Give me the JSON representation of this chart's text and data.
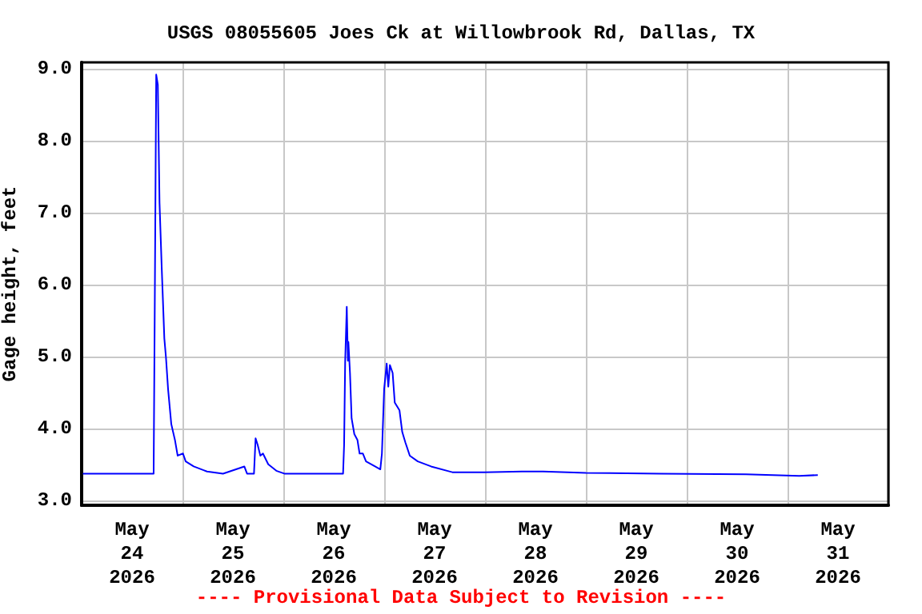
{
  "chart_data": {
    "type": "line",
    "title": "USGS 08055605 Joes Ck at Willowbrook Rd, Dallas, TX",
    "ylabel": "Gage height, feet",
    "annotations": [
      "---- Provisional Data Subject to Revision ----"
    ],
    "x": [
      "2026-05-24T00:00",
      "2026-05-24T17:08",
      "2026-05-24T17:23",
      "2026-05-24T17:45",
      "2026-05-24T18:08",
      "2026-05-24T18:32",
      "2026-05-24T19:03",
      "2026-05-24T19:41",
      "2026-05-24T20:04",
      "2026-05-24T20:34",
      "2026-05-24T21:20",
      "2026-05-24T22:12",
      "2026-05-24T22:51",
      "2026-05-25T00:07",
      "2026-05-25T00:46",
      "2026-05-25T02:40",
      "2026-05-25T05:50",
      "2026-05-25T09:39",
      "2026-05-25T14:43",
      "2026-05-25T15:22",
      "2026-05-25T17:01",
      "2026-05-25T17:24",
      "2026-05-25T17:54",
      "2026-05-25T18:32",
      "2026-05-25T19:09",
      "2026-05-25T20:25",
      "2026-05-25T22:20",
      "2026-05-26T00:14",
      "2026-05-26T14:13",
      "2026-05-26T14:28",
      "2026-05-26T14:43",
      "2026-05-26T15:06",
      "2026-05-26T15:22",
      "2026-05-26T15:29",
      "2026-05-26T15:52",
      "2026-05-26T16:15",
      "2026-05-26T16:54",
      "2026-05-26T17:38",
      "2026-05-26T18:09",
      "2026-05-26T18:55",
      "2026-05-26T19:41",
      "2026-05-26T21:50",
      "2026-05-26T23:05",
      "2026-05-26T23:28",
      "2026-05-27T00:00",
      "2026-05-27T00:36",
      "2026-05-27T00:59",
      "2026-05-27T01:22",
      "2026-05-27T02:01",
      "2026-05-27T02:31",
      "2026-05-27T03:39",
      "2026-05-27T04:18",
      "2026-05-27T05:04",
      "2026-05-27T06:06",
      "2026-05-27T08:00",
      "2026-05-27T11:10",
      "2026-05-27T16:13",
      "2026-05-27T23:51",
      "2026-05-28T08:46",
      "2026-05-28T13:49",
      "2026-05-29T00:00",
      "2026-05-29T17:46",
      "2026-05-30T14:05",
      "2026-05-31T02:47",
      "2026-05-31T07:12"
    ],
    "series": [
      {
        "color": "#0000ff",
        "values": [
          3.37,
          3.37,
          5.51,
          8.92,
          8.78,
          7.14,
          6.25,
          5.25,
          4.99,
          4.55,
          4.06,
          3.84,
          3.62,
          3.65,
          3.54,
          3.47,
          3.4,
          3.37,
          3.47,
          3.37,
          3.37,
          3.86,
          3.77,
          3.62,
          3.65,
          3.5,
          3.41,
          3.37,
          3.37,
          3.77,
          4.92,
          5.69,
          4.94,
          5.2,
          4.77,
          4.14,
          3.92,
          3.84,
          3.65,
          3.65,
          3.54,
          3.47,
          3.43,
          3.65,
          4.55,
          4.9,
          4.58,
          4.88,
          4.77,
          4.36,
          4.25,
          3.95,
          3.8,
          3.62,
          3.54,
          3.47,
          3.39,
          3.39,
          3.4,
          3.4,
          3.38,
          3.37,
          3.36,
          3.34,
          3.35
        ]
      }
    ],
    "xlim": [
      "2026-05-24T00:00",
      "2026-06-01T00:00"
    ],
    "xticks": [
      {
        "value": "2026-05-24T00:00",
        "label": null
      },
      {
        "value": "2026-05-24T12:00",
        "label": "May\n24\n2026"
      },
      {
        "value": "2026-05-25T00:00",
        "label": null
      },
      {
        "value": "2026-05-25T12:00",
        "label": "May\n25\n2026"
      },
      {
        "value": "2026-05-26T00:00",
        "label": null
      },
      {
        "value": "2026-05-26T12:00",
        "label": "May\n26\n2026"
      },
      {
        "value": "2026-05-27T00:00",
        "label": null
      },
      {
        "value": "2026-05-27T12:00",
        "label": "May\n27\n2026"
      },
      {
        "value": "2026-05-28T00:00",
        "label": null
      },
      {
        "value": "2026-05-28T12:00",
        "label": "May\n28\n2026"
      },
      {
        "value": "2026-05-29T00:00",
        "label": null
      },
      {
        "value": "2026-05-29T12:00",
        "label": "May\n29\n2026"
      },
      {
        "value": "2026-05-30T00:00",
        "label": null
      },
      {
        "value": "2026-05-30T12:00",
        "label": "May\n30\n2026"
      },
      {
        "value": "2026-05-31T00:00",
        "label": null
      },
      {
        "value": "2026-05-31T12:00",
        "label": "May\n31\n2026"
      },
      {
        "value": "2026-06-01T00:00",
        "label": null
      }
    ],
    "ylim": [
      2.93,
      9.09
    ],
    "yticks": [
      {
        "value": 3,
        "label": "3.0"
      },
      {
        "value": 4,
        "label": "4.0"
      },
      {
        "value": 5,
        "label": "5.0"
      },
      {
        "value": 6,
        "label": "6.0"
      },
      {
        "value": 7,
        "label": "7.0"
      },
      {
        "value": 8,
        "label": "8.0"
      },
      {
        "value": 9,
        "label": "9.0"
      }
    ],
    "grid": true,
    "marker": "none",
    "line_style": "solid"
  }
}
